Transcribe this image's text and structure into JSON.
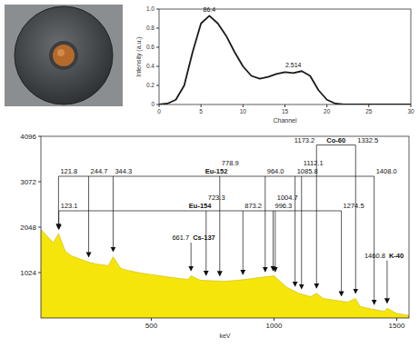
{
  "chart_data": [
    {
      "type": "line",
      "x": [
        0,
        1,
        2,
        3,
        4,
        5,
        6,
        7,
        8,
        9,
        10,
        11,
        12,
        13,
        14,
        15,
        16,
        17,
        18,
        19,
        20,
        21,
        22,
        23,
        24,
        25,
        26,
        27,
        28,
        29,
        30
      ],
      "values": [
        0,
        0.01,
        0.05,
        0.2,
        0.55,
        0.85,
        0.93,
        0.85,
        0.72,
        0.55,
        0.4,
        0.3,
        0.27,
        0.29,
        0.32,
        0.34,
        0.33,
        0.35,
        0.3,
        0.15,
        0.05,
        0.01,
        0,
        0,
        0,
        0,
        0,
        0,
        0,
        0,
        0
      ],
      "color": "#1a1a1a",
      "xlim": [
        0,
        30
      ],
      "xticks": [
        0,
        5,
        10,
        15,
        20,
        25,
        30
      ],
      "ylim": [
        0,
        1
      ],
      "yticks": [
        0,
        0.2,
        0.4,
        0.6,
        0.8,
        {
          "value": 1,
          "label": "1.0"
        }
      ],
      "x_label": "Channel",
      "y_label": "Intensity (a.u.)",
      "grid": false,
      "annotations": [
        {
          "x": 6,
          "y": 0.93,
          "text": "86.4"
        },
        {
          "x": 16,
          "y": 0.35,
          "text": "2.514"
        }
      ]
    },
    {
      "type": "area",
      "x": [
        50,
        75,
        100,
        121.8,
        150,
        175,
        200,
        225,
        250,
        275,
        300,
        325,
        344.3,
        375,
        400,
        450,
        500,
        550,
        600,
        650,
        661.7,
        700,
        750,
        800,
        850,
        900,
        950,
        1000,
        1050,
        1100,
        1150,
        1173.2,
        1200,
        1250,
        1300,
        1332.5,
        1350,
        1400,
        1450,
        1460.8,
        1500,
        1550
      ],
      "values": [
        2000,
        1850,
        1700,
        1900,
        1500,
        1400,
        1350,
        1300,
        1250,
        1220,
        1200,
        1180,
        1380,
        1120,
        1080,
        1020,
        980,
        940,
        900,
        870,
        950,
        850,
        840,
        830,
        850,
        880,
        920,
        950,
        700,
        560,
        480,
        560,
        440,
        400,
        360,
        440,
        260,
        200,
        150,
        220,
        100,
        60
      ],
      "color": "#f5e50a",
      "xlim": [
        50,
        1550
      ],
      "xticks": [
        500,
        1000,
        1500
      ],
      "ylim": [
        0,
        4096
      ],
      "yticks": [
        1024,
        2048,
        3072,
        4096
      ],
      "x_label": "keV",
      "grid": false,
      "annotations": [
        {
          "nuclide": "Eu-152",
          "peaks": [
            {
              "energy": 121.8,
              "label": "121.8"
            },
            {
              "energy": 244.7,
              "label": "244.7"
            },
            {
              "energy": 344.3,
              "label": "344.3"
            },
            {
              "energy": 778.9,
              "label": "778.9"
            },
            {
              "energy": 964.0,
              "label": "964.0"
            },
            {
              "energy": 1085.8,
              "label": "1085.8"
            },
            {
              "energy": 1112.1,
              "label": "1112.1"
            },
            {
              "energy": 1408.0,
              "label": "1408.0"
            }
          ]
        },
        {
          "nuclide": "Eu-154",
          "peaks": [
            {
              "energy": 123.1,
              "label": "123.1"
            },
            {
              "energy": 723.3,
              "label": "723.3"
            },
            {
              "energy": 873.2,
              "label": "873.2"
            },
            {
              "energy": 996.3,
              "label": "996.3"
            },
            {
              "energy": 1004.7,
              "label": "1004.7"
            },
            {
              "energy": 1274.5,
              "label": "1274.5"
            }
          ]
        },
        {
          "nuclide": "Cs-137",
          "peaks": [
            {
              "energy": 661.7,
              "label": "661.7"
            }
          ]
        },
        {
          "nuclide": "Co-60",
          "peaks": [
            {
              "energy": 1173.2,
              "label": "1173.2"
            },
            {
              "energy": 1332.5,
              "label": "1332.5"
            }
          ]
        },
        {
          "nuclide": "K-40",
          "peaks": [
            {
              "energy": 1460.8,
              "label": "1460.8"
            }
          ]
        }
      ]
    }
  ]
}
